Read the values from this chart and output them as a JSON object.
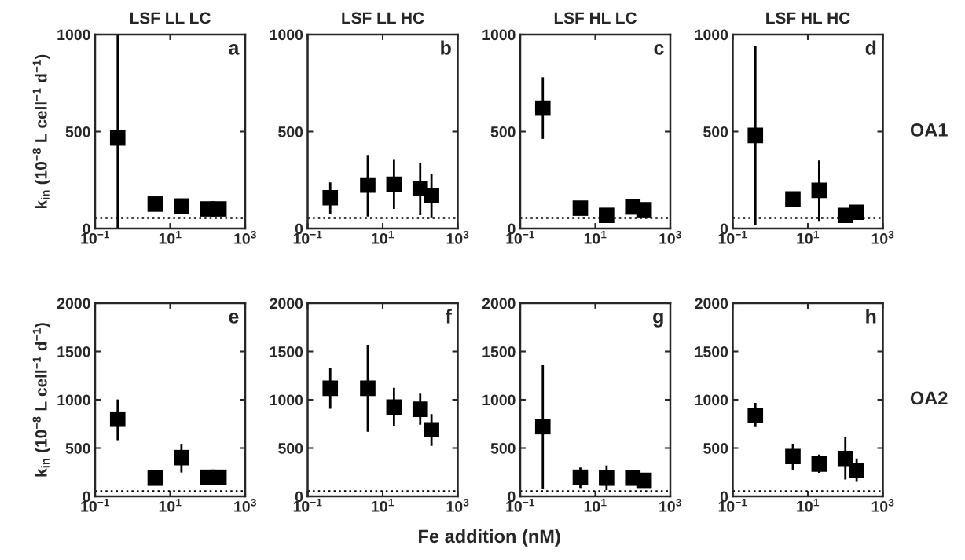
{
  "chart_data": [
    {
      "type": "scatter",
      "title": "LSF LL LC",
      "ylabel": "k$_{in}$ (10$^{−8}$ L cell$^{−1}$ d$^{−1}$)",
      "annotations": [
        "a"
      ],
      "x": [
        0.4,
        4,
        20,
        100,
        200
      ],
      "series": [
        {
          "color": "#000000",
          "values": [
            467,
            126,
            116,
            101,
            101
          ],
          "errors": [
            [
              0,
              1000
            ],
            [
              100,
              160
            ],
            null,
            null,
            null
          ]
        }
      ],
      "xlim": [
        0.1,
        1000
      ],
      "xticks": [
        {
          "value": 0.1,
          "label": "10$^{−1}$"
        },
        {
          "value": 10,
          "label": "10$^{1}$"
        },
        {
          "value": 1000,
          "label": "10$^{3}$"
        }
      ],
      "ylim": [
        0,
        1000
      ],
      "yticks": [
        0,
        500,
        1000
      ],
      "log": "x",
      "marker": "square",
      "ref_lines": [
        {
          "axis": "y",
          "value": 55,
          "line_style": "dotted",
          "color": "#000000"
        }
      ]
    },
    {
      "type": "scatter",
      "title": "LSF LL HC",
      "annotations": [
        "b"
      ],
      "x": [
        0.4,
        4,
        20,
        100,
        200
      ],
      "series": [
        {
          "color": "#000000",
          "values": [
            159,
            224,
            228,
            207,
            171
          ],
          "errors": [
            [
              75,
              238
            ],
            [
              62,
              380
            ],
            [
              101,
              354
            ],
            [
              69,
              337
            ],
            [
              58,
              279
            ]
          ]
        }
      ],
      "xlim": [
        0.1,
        1000
      ],
      "xticks": [
        {
          "value": 0.1,
          "label": "10$^{−1}$"
        },
        {
          "value": 10,
          "label": "10$^{1}$"
        },
        {
          "value": 1000,
          "label": "10$^{3}$"
        }
      ],
      "ylim": [
        0,
        1000
      ],
      "yticks": [
        0,
        500,
        1000
      ],
      "log": "x",
      "marker": "square",
      "ref_lines": [
        {
          "axis": "y",
          "value": 55,
          "line_style": "dotted",
          "color": "#000000"
        }
      ]
    },
    {
      "type": "scatter",
      "title": "LSF HL LC",
      "annotations": [
        "c"
      ],
      "x": [
        0.4,
        4,
        20,
        100,
        200
      ],
      "series": [
        {
          "color": "#000000",
          "values": [
            621,
            105,
            68,
            111,
            97
          ],
          "errors": [
            [
              462,
              780
            ],
            null,
            null,
            null,
            null
          ]
        }
      ],
      "xlim": [
        0.1,
        1000
      ],
      "xticks": [
        {
          "value": 0.1,
          "label": "10$^{−1}$"
        },
        {
          "value": 10,
          "label": "10$^{1}$"
        },
        {
          "value": 1000,
          "label": "10$^{3}$"
        }
      ],
      "ylim": [
        0,
        1000
      ],
      "yticks": [
        0,
        500,
        1000
      ],
      "log": "x",
      "marker": "square",
      "ref_lines": [
        {
          "axis": "y",
          "value": 55,
          "line_style": "dotted",
          "color": "#000000"
        }
      ]
    },
    {
      "type": "scatter",
      "title": "LSF HL HC",
      "annotations": [
        "d",
        "OA1"
      ],
      "x": [
        0.4,
        4,
        20,
        100,
        200
      ],
      "series": [
        {
          "color": "#000000",
          "values": [
            480,
            153,
            197,
            68,
            84
          ],
          "errors": [
            [
              17,
              939
            ],
            null,
            [
              35,
              351
            ],
            null,
            null
          ]
        }
      ],
      "xlim": [
        0.1,
        1000
      ],
      "xticks": [
        {
          "value": 0.1,
          "label": "10$^{−1}$"
        },
        {
          "value": 10,
          "label": "10$^{1}$"
        },
        {
          "value": 1000,
          "label": "10$^{3}$"
        }
      ],
      "ylim": [
        0,
        1000
      ],
      "yticks": [
        0,
        500,
        1000
      ],
      "log": "x",
      "marker": "square",
      "ref_lines": [
        {
          "axis": "y",
          "value": 55,
          "line_style": "dotted",
          "color": "#000000"
        }
      ]
    },
    {
      "type": "scatter",
      "ylabel": "k$_{in}$ (10$^{−8}$ L cell$^{−1}$ d$^{−1}$)",
      "annotations": [
        "e"
      ],
      "x": [
        0.4,
        4,
        20,
        100,
        200
      ],
      "series": [
        {
          "color": "#000000",
          "values": [
            799,
            189,
            401,
            198,
            198
          ],
          "errors": [
            [
              581,
              1003
            ],
            null,
            [
              247,
              544
            ],
            null,
            null
          ]
        }
      ],
      "xlim": [
        0.1,
        1000
      ],
      "xticks": [
        {
          "value": 0.1,
          "label": "10$^{−1}$"
        },
        {
          "value": 10,
          "label": "10$^{1}$"
        },
        {
          "value": 1000,
          "label": "10$^{3}$"
        }
      ],
      "ylim": [
        0,
        2000
      ],
      "yticks": [
        0,
        500,
        1000,
        1500,
        2000
      ],
      "log": "x",
      "marker": "square",
      "ref_lines": [
        {
          "axis": "y",
          "value": 52,
          "line_style": "dotted",
          "color": "#000000"
        }
      ]
    },
    {
      "type": "scatter",
      "xlabel": "Fe addition (nM)",
      "annotations": [
        "f"
      ],
      "x": [
        0.4,
        4,
        20,
        100,
        200
      ],
      "series": [
        {
          "color": "#000000",
          "values": [
            1119,
            1119,
            924,
            901,
            689
          ],
          "errors": [
            [
              907,
              1331
            ],
            [
              669,
              1570
            ],
            [
              727,
              1125
            ],
            [
              741,
              1064
            ],
            [
              523,
              852
            ]
          ]
        }
      ],
      "xlim": [
        0.1,
        1000
      ],
      "xticks": [
        {
          "value": 0.1,
          "label": "10$^{−1}$"
        },
        {
          "value": 10,
          "label": "10$^{1}$"
        },
        {
          "value": 1000,
          "label": "10$^{3}$"
        }
      ],
      "ylim": [
        0,
        2000
      ],
      "yticks": [
        0,
        500,
        1000,
        1500,
        2000
      ],
      "log": "x",
      "marker": "square",
      "ref_lines": [
        {
          "axis": "y",
          "value": 52,
          "line_style": "dotted",
          "color": "#000000"
        }
      ]
    },
    {
      "type": "scatter",
      "annotations": [
        "g"
      ],
      "x": [
        0.4,
        4,
        20,
        100,
        200
      ],
      "series": [
        {
          "color": "#000000",
          "values": [
            721,
            198,
            189,
            189,
            166
          ],
          "errors": [
            [
              81,
              1358
            ],
            [
              87,
              299
            ],
            [
              64,
              320
            ],
            [
              116,
              267
            ],
            null
          ]
        }
      ],
      "xlim": [
        0.1,
        1000
      ],
      "xticks": [
        {
          "value": 0.1,
          "label": "10$^{−1}$"
        },
        {
          "value": 10,
          "label": "10$^{1}$"
        },
        {
          "value": 1000,
          "label": "10$^{3}$"
        }
      ],
      "ylim": [
        0,
        2000
      ],
      "yticks": [
        0,
        500,
        1000,
        1500,
        2000
      ],
      "log": "x",
      "marker": "square",
      "ref_lines": [
        {
          "axis": "y",
          "value": 52,
          "line_style": "dotted",
          "color": "#000000"
        }
      ]
    },
    {
      "type": "scatter",
      "annotations": [
        "h",
        "OA2"
      ],
      "x": [
        0.4,
        4,
        20,
        100,
        200
      ],
      "series": [
        {
          "color": "#000000",
          "values": [
            837,
            413,
            334,
            392,
            270
          ],
          "errors": [
            [
              718,
              968
            ],
            [
              276,
              544
            ],
            [
              244,
              433
            ],
            [
              174,
              610
            ],
            [
              151,
              392
            ]
          ]
        }
      ],
      "xlim": [
        0.1,
        1000
      ],
      "xticks": [
        {
          "value": 0.1,
          "label": "10$^{−1}$"
        },
        {
          "value": 10,
          "label": "10$^{1}$"
        },
        {
          "value": 1000,
          "label": "10$^{3}$"
        }
      ],
      "ylim": [
        0,
        2000
      ],
      "yticks": [
        0,
        500,
        1000,
        1500,
        2000
      ],
      "log": "x",
      "marker": "square",
      "ref_lines": [
        {
          "axis": "y",
          "value": 52,
          "line_style": "dotted",
          "color": "#000000"
        }
      ]
    }
  ]
}
